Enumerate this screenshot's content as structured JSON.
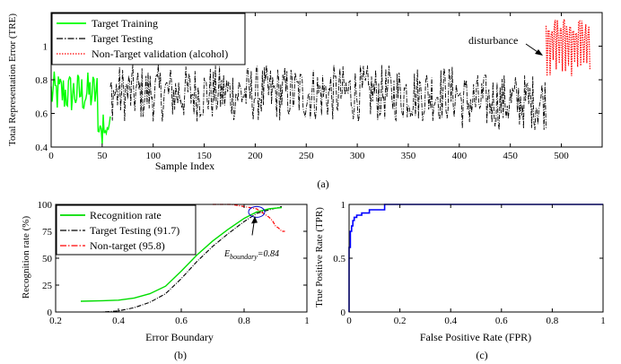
{
  "panels": {
    "a": {
      "caption": "(a)",
      "ylabel": "Total Representation Error (TRE)",
      "xlabel": "Sample Index",
      "xlim": [
        0,
        540
      ],
      "ylim": [
        0.4,
        1.2
      ],
      "xticks": [
        0,
        50,
        100,
        150,
        200,
        250,
        300,
        350,
        400,
        450,
        500
      ],
      "yticks": [
        0.4,
        0.6,
        0.8,
        1.0
      ],
      "ytick_labels": [
        "0.4",
        "0.6",
        "0.8",
        "1"
      ],
      "annotation": "disturbance",
      "legend": [
        {
          "label": "Target Training",
          "color": "#00ff00",
          "dash": "solid"
        },
        {
          "label": "Target Testing",
          "color": "#000000",
          "dash": "dashdot"
        },
        {
          "label": "Non-Target validation (alcohol)",
          "color": "#ff0000",
          "dash": "dotted"
        }
      ]
    },
    "b": {
      "caption": "(b)",
      "ylabel": "Recognition rate (%)",
      "xlabel": "Error Boundary",
      "xlim": [
        0.2,
        1.0
      ],
      "ylim": [
        0,
        100
      ],
      "xticks": [
        0.2,
        0.4,
        0.6,
        0.8,
        1.0
      ],
      "xtick_labels": [
        "0.2",
        "0.4",
        "0.6",
        "0.8",
        "1"
      ],
      "yticks": [
        0,
        25,
        50,
        75,
        100
      ],
      "annotation": "E_boundary=0.84",
      "annotation_main": "E",
      "annotation_sub": "boundary",
      "annotation_value": "=0.84",
      "legend": [
        {
          "label": "Recognition rate",
          "color": "#00dd00",
          "dash": "solid"
        },
        {
          "label": "Target Testing (91.7)",
          "color": "#000000",
          "dash": "dashdot"
        },
        {
          "label": "Non-target (95.8)",
          "color": "#ff0000",
          "dash": "dashdot"
        }
      ]
    },
    "c": {
      "caption": "(c)",
      "ylabel": "True Positive Rate (TPR)",
      "xlabel": "False Positive Rate (FPR)",
      "xlim": [
        0,
        1
      ],
      "ylim": [
        0,
        1
      ],
      "xticks": [
        0,
        0.2,
        0.4,
        0.6,
        0.8,
        1.0
      ],
      "xtick_labels": [
        "0",
        "0.2",
        "0.4",
        "0.6",
        "0.8",
        "1"
      ],
      "yticks": [
        0,
        0.5,
        1.0
      ],
      "ytick_labels": [
        "0",
        "0.5",
        "1"
      ]
    }
  },
  "colors": {
    "green": "#00ff00",
    "black": "#000000",
    "red": "#ff0000",
    "blue": "#0000ff"
  },
  "chart_data": [
    {
      "panel": "a",
      "type": "line",
      "xlim": [
        0,
        540
      ],
      "ylim": [
        0.4,
        1.2
      ],
      "series": [
        {
          "name": "Target Training",
          "x_range": [
            0,
            58
          ],
          "values_summary": {
            "min": 0.42,
            "max": 0.9,
            "mean": 0.72
          }
        },
        {
          "name": "Target Testing",
          "x_range": [
            58,
            485
          ],
          "values_summary": {
            "min": 0.4,
            "max": 0.9,
            "mean": 0.72
          }
        },
        {
          "name": "Non-Target validation (alcohol)",
          "x_range": [
            485,
            528
          ],
          "values_summary": {
            "min": 0.8,
            "max": 1.17,
            "mean": 1.0
          }
        }
      ]
    },
    {
      "panel": "b",
      "type": "line",
      "xlim": [
        0.2,
        1.0
      ],
      "ylim": [
        0,
        100
      ],
      "series": [
        {
          "name": "Recognition rate",
          "x": [
            0.28,
            0.35,
            0.4,
            0.45,
            0.5,
            0.55,
            0.6,
            0.65,
            0.7,
            0.75,
            0.8,
            0.84,
            0.88,
            0.92
          ],
          "y": [
            10,
            10.5,
            11,
            13,
            17,
            24,
            38,
            53,
            66,
            77,
            87,
            93,
            96,
            97
          ]
        },
        {
          "name": "Target Testing (91.7)",
          "x": [
            0.28,
            0.35,
            0.4,
            0.45,
            0.5,
            0.55,
            0.6,
            0.65,
            0.7,
            0.75,
            0.8,
            0.84,
            0.88,
            0.92
          ],
          "y": [
            0,
            0,
            1,
            4,
            9,
            17,
            31,
            47,
            61,
            73,
            84,
            91.7,
            95,
            98
          ]
        },
        {
          "name": "Non-target (95.8)",
          "x": [
            0.7,
            0.76,
            0.78,
            0.8,
            0.82,
            0.84,
            0.86,
            0.88,
            0.89,
            0.9,
            0.91,
            0.92,
            0.93
          ],
          "y": [
            100,
            100,
            99,
            98,
            97,
            95.8,
            92,
            88,
            85,
            80,
            78,
            75,
            75
          ]
        }
      ]
    },
    {
      "panel": "c",
      "type": "line",
      "xlim": [
        0,
        1
      ],
      "ylim": [
        0,
        1
      ],
      "series": [
        {
          "name": "ROC",
          "x": [
            0,
            0,
            0.005,
            0.01,
            0.015,
            0.02,
            0.03,
            0.05,
            0.08,
            0.14,
            0.14,
            1.0
          ],
          "y": [
            0,
            0.6,
            0.75,
            0.8,
            0.85,
            0.88,
            0.9,
            0.92,
            0.95,
            0.97,
            1.0,
            1.0
          ]
        }
      ]
    }
  ]
}
